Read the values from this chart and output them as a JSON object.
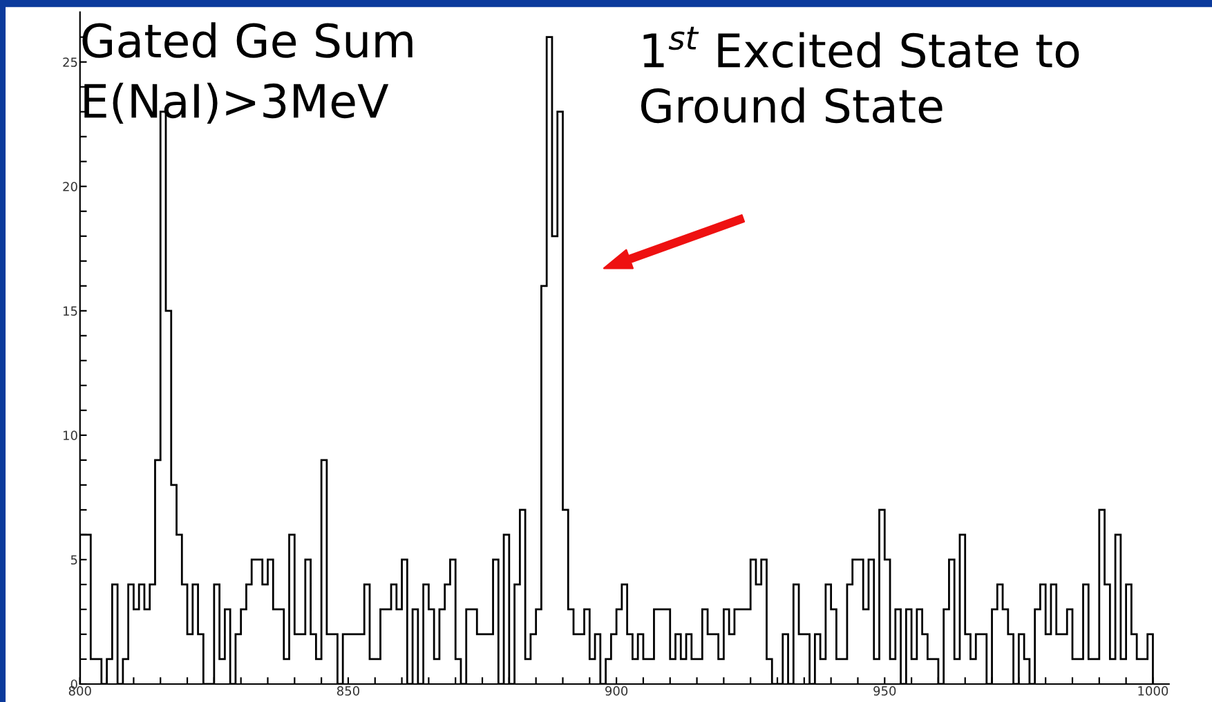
{
  "chart_data": {
    "type": "histogram",
    "bins": [
      800,
      801,
      802,
      803,
      804,
      805,
      806,
      807,
      808,
      809,
      810,
      811,
      812,
      813,
      814,
      815,
      816,
      817,
      818,
      819,
      820,
      821,
      822,
      823,
      824,
      825,
      826,
      827,
      828,
      829,
      830,
      831,
      832,
      833,
      834,
      835,
      836,
      837,
      838,
      839,
      840,
      841,
      842,
      843,
      844,
      845,
      846,
      847,
      848,
      849,
      850,
      851,
      852,
      853,
      854,
      855,
      856,
      857,
      858,
      859,
      860,
      861,
      862,
      863,
      864,
      865,
      866,
      867,
      868,
      869,
      870,
      871,
      872,
      873,
      874,
      875,
      876,
      877,
      878,
      879,
      880,
      881,
      882,
      883,
      884,
      885,
      886,
      887,
      888,
      889,
      890,
      891,
      892,
      893,
      894,
      895,
      896,
      897,
      898,
      899,
      900,
      901,
      902,
      903,
      904,
      905,
      906,
      907,
      908,
      909,
      910,
      911,
      912,
      913,
      914,
      915,
      916,
      917,
      918,
      919,
      920,
      921,
      922,
      923,
      924,
      925,
      926,
      927,
      928,
      929,
      930,
      931,
      932,
      933,
      934,
      935,
      936,
      937,
      938,
      939,
      940,
      941,
      942,
      943,
      944,
      945,
      946,
      947,
      948,
      949,
      950,
      951,
      952,
      953,
      954,
      955,
      956,
      957,
      958,
      959,
      960,
      961,
      962,
      963,
      964,
      965,
      966,
      967,
      968,
      969,
      970,
      971,
      972,
      973,
      974,
      975,
      976,
      977,
      978,
      979,
      980,
      981,
      982,
      983,
      984,
      985,
      986,
      987,
      988,
      989,
      990,
      991,
      992,
      993,
      994,
      995,
      996,
      997,
      998,
      999,
      1000
    ],
    "values": [
      6,
      6,
      1,
      1,
      0,
      1,
      4,
      0,
      1,
      4,
      3,
      4,
      3,
      4,
      9,
      23,
      15,
      8,
      6,
      4,
      2,
      4,
      2,
      0,
      0,
      4,
      1,
      3,
      0,
      2,
      3,
      4,
      5,
      5,
      4,
      5,
      3,
      3,
      1,
      6,
      2,
      2,
      5,
      2,
      1,
      9,
      2,
      2,
      0,
      2,
      2,
      2,
      2,
      4,
      1,
      1,
      3,
      3,
      4,
      3,
      5,
      0,
      3,
      0,
      4,
      3,
      1,
      3,
      4,
      5,
      1,
      0,
      3,
      3,
      2,
      2,
      2,
      5,
      0,
      6,
      0,
      4,
      7,
      1,
      2,
      3,
      16,
      26,
      18,
      23,
      7,
      3,
      2,
      2,
      3,
      1,
      2,
      0,
      1,
      2,
      3,
      4,
      2,
      1,
      2,
      1,
      1,
      3,
      3,
      3,
      1,
      2,
      1,
      2,
      1,
      1,
      3,
      2,
      2,
      1,
      3,
      2,
      3,
      3,
      3,
      5,
      4,
      5,
      1,
      0,
      0,
      2,
      0,
      4,
      2,
      2,
      0,
      2,
      1,
      4,
      3,
      1,
      1,
      4,
      5,
      5,
      3,
      5,
      1,
      7,
      5,
      1,
      3,
      0,
      3,
      1,
      3,
      2,
      1,
      1,
      0,
      3,
      5,
      1,
      6,
      2,
      1,
      2,
      2,
      0,
      3,
      4,
      3,
      2,
      0,
      2,
      1,
      0,
      3,
      4,
      2,
      4,
      2,
      2,
      3,
      1,
      1,
      4,
      1,
      1,
      7,
      4,
      1,
      6,
      1,
      4,
      2,
      1,
      1,
      2
    ],
    "color": "#000000",
    "xlim": [
      800,
      1003
    ],
    "ylim": [
      0,
      27
    ],
    "xticks": [
      800,
      {
        "value": 805,
        "label": null
      },
      {
        "value": 810,
        "label": null
      },
      {
        "value": 815,
        "label": null
      },
      {
        "value": 820,
        "label": null
      },
      {
        "value": 825,
        "label": null
      },
      {
        "value": 830,
        "label": null
      },
      {
        "value": 835,
        "label": null
      },
      {
        "value": 840,
        "label": null
      },
      {
        "value": 845,
        "label": null
      },
      850,
      {
        "value": 855,
        "label": null
      },
      {
        "value": 860,
        "label": null
      },
      {
        "value": 865,
        "label": null
      },
      {
        "value": 870,
        "label": null
      },
      {
        "value": 875,
        "label": null
      },
      {
        "value": 880,
        "label": null
      },
      {
        "value": 885,
        "label": null
      },
      {
        "value": 890,
        "label": null
      },
      {
        "value": 895,
        "label": null
      },
      900,
      {
        "value": 905,
        "label": null
      },
      {
        "value": 910,
        "label": null
      },
      {
        "value": 915,
        "label": null
      },
      {
        "value": 920,
        "label": null
      },
      {
        "value": 925,
        "label": null
      },
      {
        "value": 930,
        "label": null
      },
      {
        "value": 935,
        "label": null
      },
      {
        "value": 940,
        "label": null
      },
      {
        "value": 945,
        "label": null
      },
      950,
      {
        "value": 955,
        "label": null
      },
      {
        "value": 960,
        "label": null
      },
      {
        "value": 965,
        "label": null
      },
      {
        "value": 970,
        "label": null
      },
      {
        "value": 975,
        "label": null
      },
      {
        "value": 980,
        "label": null
      },
      {
        "value": 985,
        "label": null
      },
      {
        "value": 990,
        "label": null
      },
      {
        "value": 995,
        "label": null
      },
      1000
    ],
    "yticks": [
      0,
      {
        "value": 1,
        "label": null
      },
      {
        "value": 2,
        "label": null
      },
      {
        "value": 3,
        "label": null
      },
      {
        "value": 4,
        "label": null
      },
      5,
      {
        "value": 6,
        "label": null
      },
      {
        "value": 7,
        "label": null
      },
      {
        "value": 8,
        "label": null
      },
      {
        "value": 9,
        "label": null
      },
      10,
      {
        "value": 11,
        "label": null
      },
      {
        "value": 12,
        "label": null
      },
      {
        "value": 13,
        "label": null
      },
      {
        "value": 14,
        "label": null
      },
      15,
      {
        "value": 16,
        "label": null
      },
      {
        "value": 17,
        "label": null
      },
      {
        "value": 18,
        "label": null
      },
      {
        "value": 19,
        "label": null
      },
      20,
      {
        "value": 21,
        "label": null
      },
      {
        "value": 22,
        "label": null
      },
      {
        "value": 23,
        "label": null
      },
      {
        "value": 24,
        "label": null
      },
      25,
      {
        "value": 26,
        "label": null
      }
    ],
    "grid": false,
    "annotations": [
      "Gated Ge Sum\nE(NaI)>3MeV",
      "1$^{st}$ Excited State to\nGround State"
    ]
  }
}
